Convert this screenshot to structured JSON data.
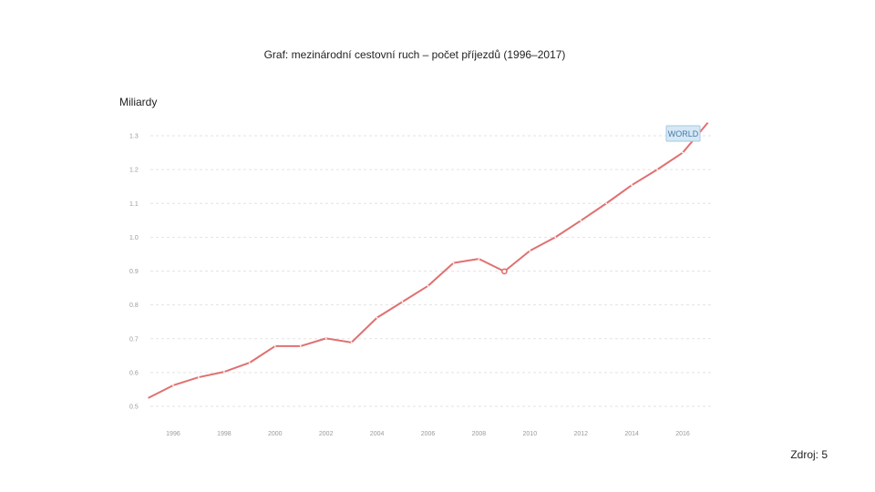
{
  "page": {
    "title": "Graf: mezinárodní cestovní ruch – počet příjezdů (1996–2017)",
    "unit_label": "Miliardy",
    "source": "Zdroj: 5"
  },
  "chart_data": {
    "type": "line",
    "title": "Graf: mezinárodní cestovní ruch – počet příjezdů (1996–2017)",
    "ylabel": "Miliardy",
    "xlabel": "",
    "xlim": [
      1995,
      2017
    ],
    "ylim": [
      0.5,
      1.3
    ],
    "y_ticks": [
      "0.5",
      "0.6",
      "0.7",
      "0.8",
      "0.9",
      "1.0",
      "1.1",
      "1.2",
      "1.3"
    ],
    "x_ticks": [
      "1996",
      "1998",
      "2000",
      "2002",
      "2004",
      "2006",
      "2008",
      "2010",
      "2012",
      "2014",
      "2016"
    ],
    "grid": true,
    "series": [
      {
        "name": "WORLD",
        "color": "#e07070",
        "x": [
          1995,
          1996,
          1997,
          1998,
          1999,
          2000,
          2001,
          2002,
          2003,
          2004,
          2005,
          2006,
          2007,
          2008,
          2009,
          2010,
          2011,
          2012,
          2013,
          2014,
          2015,
          2016,
          2017
        ],
        "values": [
          0.524,
          0.562,
          0.586,
          0.602,
          0.629,
          0.678,
          0.678,
          0.701,
          0.689,
          0.762,
          0.809,
          0.856,
          0.924,
          0.936,
          0.899,
          0.96,
          1.0,
          1.049,
          1.1,
          1.154,
          1.2,
          1.25,
          1.34
        ]
      }
    ],
    "series_tag": "WORLD"
  }
}
